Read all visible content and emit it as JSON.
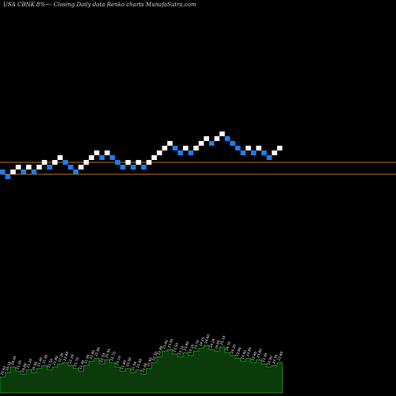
{
  "header": {
    "title": "USA CBNK 8%~- Closing Daily data  Renko  charts MunafaSutra.com"
  },
  "colors": {
    "background": "#000000",
    "up_brick": "#ffffff",
    "down_brick": "#1e7ef0",
    "reference_line": "#b8741a",
    "volume_fill": "#0b3a0b",
    "volume_outline": "#1e8a1e",
    "volume_label": "#ffffff"
  },
  "chart_data": {
    "type": "renko",
    "bricks": [
      {
        "level": 0,
        "dir": "down"
      },
      {
        "level": -1,
        "dir": "down"
      },
      {
        "level": 0,
        "dir": "up"
      },
      {
        "level": 1,
        "dir": "up"
      },
      {
        "level": 0,
        "dir": "down"
      },
      {
        "level": 1,
        "dir": "up"
      },
      {
        "level": 0,
        "dir": "down"
      },
      {
        "level": 1,
        "dir": "up"
      },
      {
        "level": 2,
        "dir": "up"
      },
      {
        "level": 1,
        "dir": "down"
      },
      {
        "level": 2,
        "dir": "up"
      },
      {
        "level": 3,
        "dir": "up"
      },
      {
        "level": 2,
        "dir": "down"
      },
      {
        "level": 1,
        "dir": "down"
      },
      {
        "level": 0,
        "dir": "down"
      },
      {
        "level": 1,
        "dir": "up"
      },
      {
        "level": 2,
        "dir": "up"
      },
      {
        "level": 3,
        "dir": "up"
      },
      {
        "level": 4,
        "dir": "up"
      },
      {
        "level": 3,
        "dir": "down"
      },
      {
        "level": 4,
        "dir": "up"
      },
      {
        "level": 3,
        "dir": "down"
      },
      {
        "level": 2,
        "dir": "down"
      },
      {
        "level": 1,
        "dir": "down"
      },
      {
        "level": 2,
        "dir": "up"
      },
      {
        "level": 1,
        "dir": "down"
      },
      {
        "level": 2,
        "dir": "up"
      },
      {
        "level": 1,
        "dir": "down"
      },
      {
        "level": 2,
        "dir": "up"
      },
      {
        "level": 3,
        "dir": "up"
      },
      {
        "level": 4,
        "dir": "up"
      },
      {
        "level": 5,
        "dir": "up"
      },
      {
        "level": 6,
        "dir": "up"
      },
      {
        "level": 5,
        "dir": "down"
      },
      {
        "level": 4,
        "dir": "down"
      },
      {
        "level": 5,
        "dir": "up"
      },
      {
        "level": 4,
        "dir": "down"
      },
      {
        "level": 5,
        "dir": "up"
      },
      {
        "level": 6,
        "dir": "up"
      },
      {
        "level": 7,
        "dir": "up"
      },
      {
        "level": 6,
        "dir": "down"
      },
      {
        "level": 7,
        "dir": "up"
      },
      {
        "level": 8,
        "dir": "up"
      },
      {
        "level": 7,
        "dir": "down"
      },
      {
        "level": 6,
        "dir": "down"
      },
      {
        "level": 5,
        "dir": "down"
      },
      {
        "level": 4,
        "dir": "down"
      },
      {
        "level": 5,
        "dir": "up"
      },
      {
        "level": 4,
        "dir": "down"
      },
      {
        "level": 5,
        "dir": "up"
      },
      {
        "level": 4,
        "dir": "down"
      },
      {
        "level": 3,
        "dir": "down"
      },
      {
        "level": 4,
        "dir": "up"
      },
      {
        "level": 5,
        "dir": "up"
      }
    ],
    "reference_levels": [
      2.0,
      -0.5
    ],
    "volume": [
      22,
      28,
      36,
      30,
      26,
      32,
      28,
      34,
      38,
      32,
      36,
      40,
      42,
      38,
      34,
      30,
      38,
      44,
      48,
      40,
      46,
      42,
      36,
      30,
      34,
      28,
      32,
      26,
      34,
      42,
      50,
      58,
      60,
      54,
      50,
      56,
      52,
      58,
      62,
      66,
      60,
      58,
      64,
      56,
      52,
      48,
      44,
      48,
      42,
      46,
      40,
      36,
      38,
      42
    ],
    "volume_labels": [
      "20.63",
      "20.10",
      "20.45",
      "21.05",
      "20.80",
      "21.20",
      "20.90",
      "21.40",
      "21.95",
      "21.50",
      "21.80",
      "22.30",
      "22.60",
      "22.20",
      "21.70",
      "21.30",
      "21.90",
      "22.40",
      "22.90",
      "22.50",
      "22.95",
      "22.70",
      "22.10",
      "21.60",
      "22.00",
      "21.50",
      "21.90",
      "21.40",
      "21.85",
      "22.30",
      "22.80",
      "23.40",
      "23.95",
      "23.50",
      "23.10",
      "23.60",
      "23.20",
      "23.70",
      "24.15",
      "24.60",
      "24.20",
      "24.65",
      "25.10",
      "24.70",
      "24.20",
      "23.80",
      "23.40",
      "23.85",
      "23.40",
      "23.80",
      "23.30",
      "22.90",
      "23.35",
      "23.80"
    ]
  }
}
